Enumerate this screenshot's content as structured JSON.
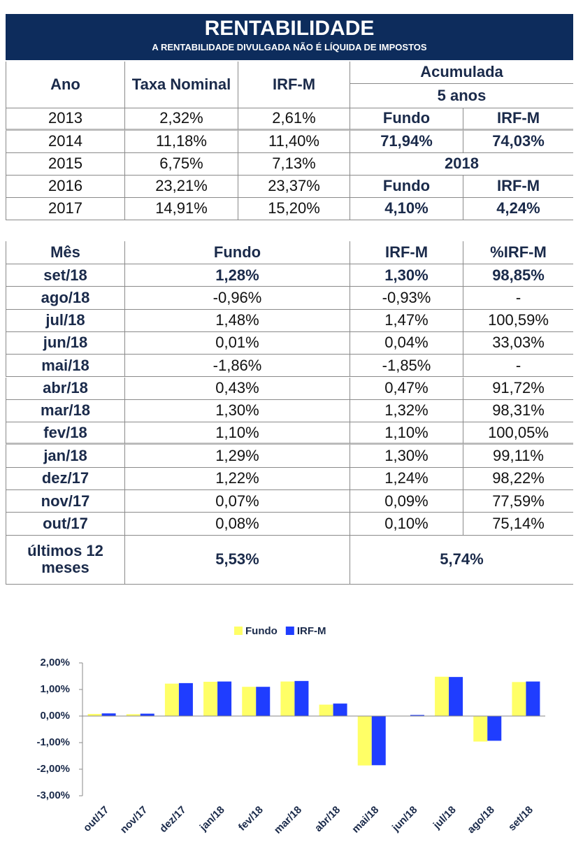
{
  "header": {
    "title": "RENTABILIDADE",
    "subtitle": "A RENTABILIDADE DIVULGADA NÃO É LÍQUIDA DE IMPOSTOS"
  },
  "table1": {
    "headers": [
      "Ano",
      "Taxa Nominal",
      "IRF-M"
    ],
    "rows": [
      [
        "2013",
        "2,32%",
        "2,61%"
      ],
      [
        "2014",
        "11,18%",
        "11,40%"
      ],
      [
        "2015",
        "6,75%",
        "7,13%"
      ],
      [
        "2016",
        "23,21%",
        "23,37%"
      ],
      [
        "2017",
        "14,91%",
        "15,20%"
      ]
    ],
    "accumulated": {
      "title": "Acumulada",
      "period": "5 anos",
      "columns": [
        "Fundo",
        "IRF-M"
      ],
      "values": [
        "71,94%",
        "74,03%"
      ]
    },
    "year": {
      "title": "2018",
      "columns": [
        "Fundo",
        "IRF-M"
      ],
      "values": [
        "4,10%",
        "4,24%"
      ]
    }
  },
  "table2": {
    "headers": [
      "Mês",
      "Fundo",
      "IRF-M",
      "%IRF-M"
    ],
    "rows": [
      [
        "set/18",
        "1,28%",
        "1,30%",
        "98,85%"
      ],
      [
        "ago/18",
        "-0,96%",
        "-0,93%",
        "-"
      ],
      [
        "jul/18",
        "1,48%",
        "1,47%",
        "100,59%"
      ],
      [
        "jun/18",
        "0,01%",
        "0,04%",
        "33,03%"
      ],
      [
        "mai/18",
        "-1,86%",
        "-1,85%",
        "-"
      ],
      [
        "abr/18",
        "0,43%",
        "0,47%",
        "91,72%"
      ],
      [
        "mar/18",
        "1,30%",
        "1,32%",
        "98,31%"
      ],
      [
        "fev/18",
        "1,10%",
        "1,10%",
        "100,05%"
      ],
      [
        "jan/18",
        "1,29%",
        "1,30%",
        "99,11%"
      ],
      [
        "dez/17",
        "1,22%",
        "1,24%",
        "98,22%"
      ],
      [
        "nov/17",
        "0,07%",
        "0,09%",
        "77,59%"
      ],
      [
        "out/17",
        "0,08%",
        "0,10%",
        "75,14%"
      ]
    ],
    "total": [
      "últimos 12 meses",
      "5,53%",
      "5,74%"
    ]
  },
  "chart_data": {
    "type": "bar",
    "categories": [
      "out/17",
      "nov/17",
      "dez/17",
      "jan/18",
      "fev/18",
      "mar/18",
      "abr/18",
      "mai/18",
      "jun/18",
      "jul/18",
      "ago/18",
      "set/18"
    ],
    "series": [
      {
        "name": "Fundo",
        "color": "#ffff66",
        "values": [
          0.08,
          0.07,
          1.22,
          1.29,
          1.1,
          1.3,
          0.43,
          -1.86,
          0.01,
          1.48,
          -0.96,
          1.28
        ]
      },
      {
        "name": "IRF-M",
        "color": "#1f3dff",
        "values": [
          0.1,
          0.09,
          1.24,
          1.3,
          1.1,
          1.32,
          0.47,
          -1.85,
          0.04,
          1.47,
          -0.93,
          1.3
        ]
      }
    ],
    "ylim": [
      -3,
      2
    ],
    "yticks": [
      {
        "value": -3,
        "label": "-3,00%"
      },
      {
        "value": -2,
        "label": "-2,00%"
      },
      {
        "value": -1,
        "label": "-1,00%"
      },
      {
        "value": 0,
        "label": "0,00%"
      },
      {
        "value": 1,
        "label": "1,00%"
      },
      {
        "value": 2,
        "label": "2,00%"
      }
    ],
    "legend": "top"
  }
}
